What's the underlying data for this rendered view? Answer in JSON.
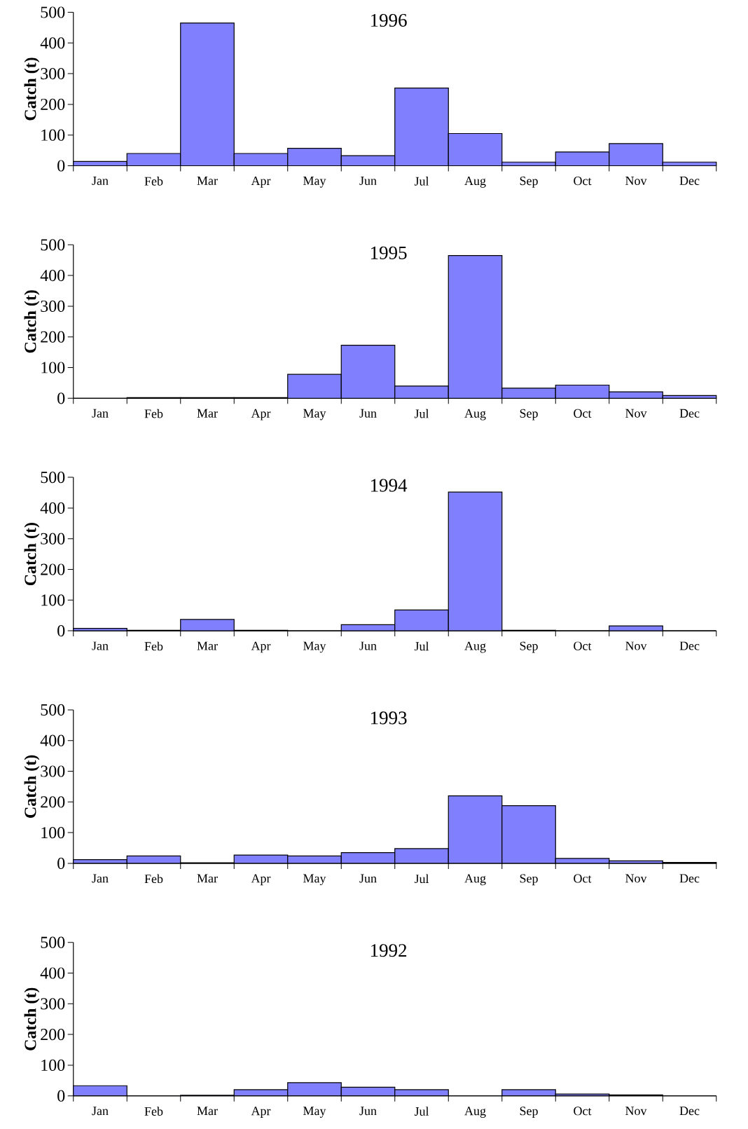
{
  "chart_data": [
    {
      "type": "bar",
      "title": "1996",
      "ylabel": "Catch (t)",
      "categories": [
        "Jan",
        "Feb",
        "Mar",
        "Apr",
        "May",
        "Jun",
        "Jul",
        "Aug",
        "Sep",
        "Oct",
        "Nov",
        "Dec"
      ],
      "values": [
        14,
        40,
        465,
        40,
        57,
        33,
        253,
        105,
        12,
        45,
        72,
        12
      ],
      "color": "#8080ff",
      "ylim": [
        0,
        500
      ],
      "yticks": [
        0,
        100,
        200,
        300,
        400,
        500
      ]
    },
    {
      "type": "bar",
      "title": "1995",
      "ylabel": "Catch (t)",
      "categories": [
        "Jan",
        "Feb",
        "Mar",
        "Apr",
        "May",
        "Jun",
        "Jul",
        "Aug",
        "Sep",
        "Oct",
        "Nov",
        "Dec"
      ],
      "values": [
        0,
        2,
        2,
        2,
        78,
        173,
        40,
        465,
        33,
        43,
        21,
        9
      ],
      "color": "#8080ff",
      "ylim": [
        0,
        500
      ],
      "yticks": [
        0,
        100,
        200,
        300,
        400,
        500
      ]
    },
    {
      "type": "bar",
      "title": "1994",
      "ylabel": "Catch (t)",
      "categories": [
        "Jan",
        "Feb",
        "Mar",
        "Apr",
        "May",
        "Jun",
        "Jul",
        "Aug",
        "Sep",
        "Oct",
        "Nov",
        "Dec"
      ],
      "values": [
        8,
        2,
        37,
        2,
        0,
        20,
        68,
        452,
        2,
        0,
        16,
        0
      ],
      "color": "#8080ff",
      "ylim": [
        0,
        500
      ],
      "yticks": [
        0,
        100,
        200,
        300,
        400,
        500
      ]
    },
    {
      "type": "bar",
      "title": "1993",
      "ylabel": "Catch (t)",
      "categories": [
        "Jan",
        "Feb",
        "Mar",
        "Apr",
        "May",
        "Jun",
        "Jul",
        "Aug",
        "Sep",
        "Oct",
        "Nov",
        "Dec"
      ],
      "values": [
        12,
        24,
        2,
        27,
        24,
        35,
        48,
        220,
        188,
        16,
        8,
        3
      ],
      "color": "#8080ff",
      "ylim": [
        0,
        500
      ],
      "yticks": [
        0,
        100,
        200,
        300,
        400,
        500
      ]
    },
    {
      "type": "bar",
      "title": "1992",
      "ylabel": "Catch (t)",
      "categories": [
        "Jan",
        "Feb",
        "Mar",
        "Apr",
        "May",
        "Jun",
        "Jul",
        "Aug",
        "Sep",
        "Oct",
        "Nov",
        "Dec"
      ],
      "values": [
        33,
        0,
        2,
        20,
        43,
        28,
        20,
        0,
        20,
        6,
        3,
        0
      ],
      "color": "#8080ff",
      "ylim": [
        0,
        500
      ],
      "yticks": [
        0,
        100,
        200,
        300,
        400,
        500
      ]
    }
  ]
}
